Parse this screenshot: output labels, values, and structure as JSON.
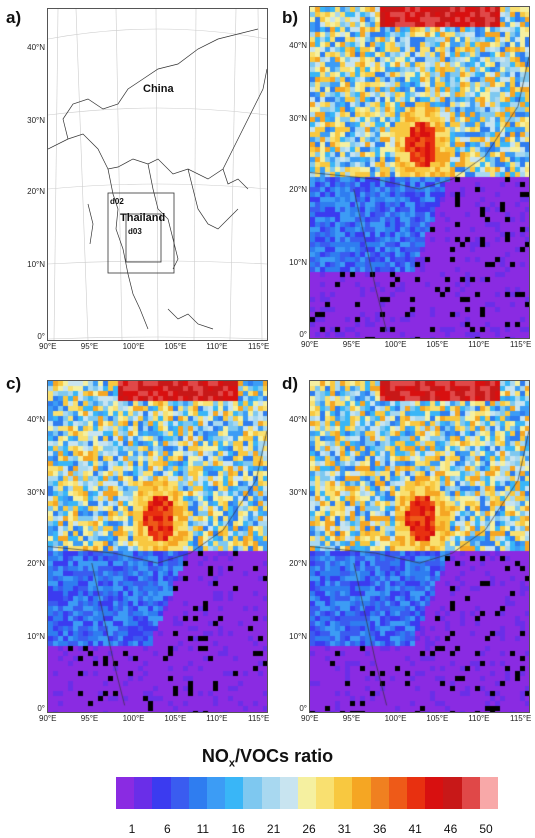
{
  "panels": [
    {
      "id": "a",
      "label": "a)",
      "type": "domain-map"
    },
    {
      "id": "b",
      "label": "b)",
      "type": "ratio-map"
    },
    {
      "id": "c",
      "label": "c)",
      "type": "ratio-map"
    },
    {
      "id": "d",
      "label": "d)",
      "type": "ratio-map"
    }
  ],
  "lat_ticks": [
    "40°N",
    "30°N",
    "20°N",
    "10°N",
    "0°"
  ],
  "lon_ticks": [
    "90°E",
    "95°E",
    "100°E",
    "105°E",
    "110°E",
    "115°E"
  ],
  "map_labels": {
    "china": "China",
    "thailand": "Thailand",
    "d02": "d02",
    "d03": "d03"
  },
  "legend": {
    "title_main": "NO",
    "title_sub": "x",
    "title_rest": "/VOCs ratio",
    "tick_labels": [
      "1",
      "6",
      "11",
      "16",
      "21",
      "26",
      "31",
      "36",
      "41",
      "46",
      "50"
    ],
    "colors": [
      "#8a2be2",
      "#6a2ee8",
      "#3b3bf0",
      "#3a5cf0",
      "#2f7df0",
      "#3c9cf5",
      "#39b6f7",
      "#7ec8f0",
      "#a8d8f0",
      "#c8e4f0",
      "#f5f0a0",
      "#f9e070",
      "#f8c840",
      "#f5a623",
      "#f08020",
      "#ee5a18",
      "#e83010",
      "#d81010",
      "#c81818",
      "#e04848",
      "#f8a8a8"
    ]
  }
}
